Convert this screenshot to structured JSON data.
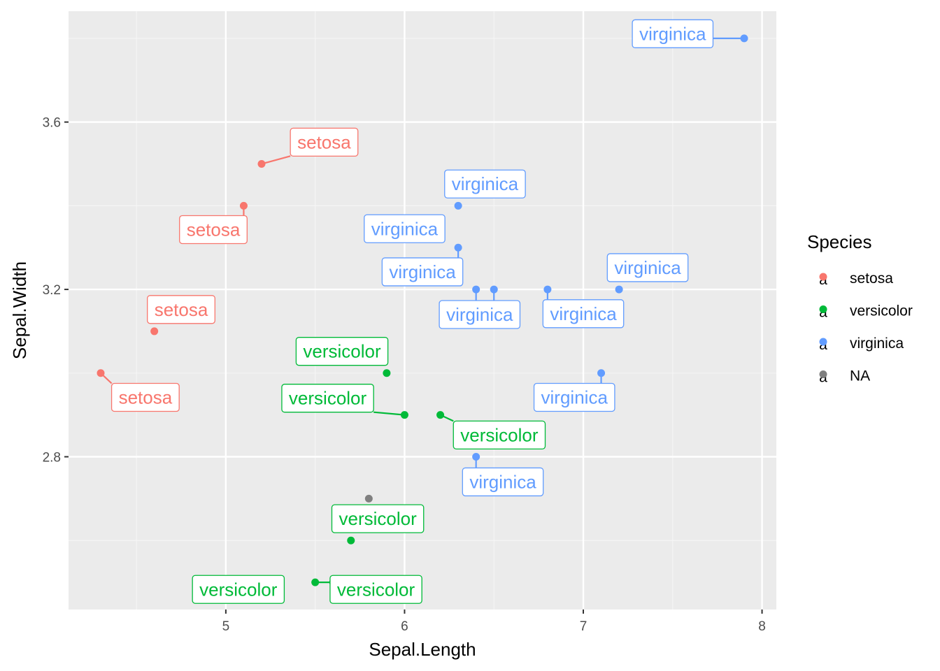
{
  "chart_data": {
    "type": "scatter",
    "xlabel": "Sepal.Length",
    "ylabel": "Sepal.Width",
    "xlim": [
      4.12,
      8.08
    ],
    "ylim": [
      2.435,
      3.865
    ],
    "x_ticks": [
      5,
      6,
      7,
      8
    ],
    "x_minor": [
      4.5,
      5.5,
      6.5,
      7.5
    ],
    "y_ticks": [
      2.8,
      3.2,
      3.6
    ],
    "y_minor": [
      2.6,
      3.0,
      3.4,
      3.8
    ],
    "x_tick_labels": [
      "5",
      "6",
      "7",
      "8"
    ],
    "y_tick_labels": [
      "2.8",
      "3.2",
      "3.6"
    ],
    "grid": true,
    "legend": {
      "title": "Species",
      "placement": "right",
      "entries": [
        {
          "label": "setosa",
          "color": "#F8766D"
        },
        {
          "label": "versicolor",
          "color": "#00BA38"
        },
        {
          "label": "virginica",
          "color": "#619CFF"
        },
        {
          "label": "NA",
          "color": "#7F7F7F"
        }
      ]
    },
    "points": [
      {
        "x": 7.9,
        "y": 3.8,
        "species": "virginica",
        "label": "virginica"
      },
      {
        "x": 5.2,
        "y": 3.5,
        "species": "setosa",
        "label": "setosa"
      },
      {
        "x": 5.1,
        "y": 3.4,
        "species": "setosa",
        "label": "setosa"
      },
      {
        "x": 6.3,
        "y": 3.4,
        "species": "virginica",
        "label": "virginica"
      },
      {
        "x": 6.3,
        "y": 3.3,
        "species": "virginica",
        "label": "virginica"
      },
      {
        "x": 6.4,
        "y": 3.2,
        "species": "virginica",
        "label": "virginica"
      },
      {
        "x": 6.5,
        "y": 3.2,
        "species": "virginica",
        "label": "virginica"
      },
      {
        "x": 6.8,
        "y": 3.2,
        "species": "virginica",
        "label": "virginica"
      },
      {
        "x": 7.2,
        "y": 3.2,
        "species": "virginica",
        "label": "virginica"
      },
      {
        "x": 4.6,
        "y": 3.1,
        "species": "setosa",
        "label": "setosa"
      },
      {
        "x": 4.3,
        "y": 3.0,
        "species": "setosa",
        "label": "setosa"
      },
      {
        "x": 5.9,
        "y": 3.0,
        "species": "versicolor",
        "label": "versicolor"
      },
      {
        "x": 7.1,
        "y": 3.0,
        "species": "virginica",
        "label": "virginica"
      },
      {
        "x": 6.0,
        "y": 2.9,
        "species": "versicolor",
        "label": "versicolor"
      },
      {
        "x": 6.2,
        "y": 2.9,
        "species": "versicolor",
        "label": "versicolor"
      },
      {
        "x": 6.4,
        "y": 2.8,
        "species": "virginica",
        "label": "virginica"
      },
      {
        "x": 5.8,
        "y": 2.7,
        "species": "NA",
        "label": ""
      },
      {
        "x": 5.7,
        "y": 2.6,
        "species": "versicolor",
        "label": "versicolor"
      },
      {
        "x": 5.5,
        "y": 2.5,
        "species": "versicolor",
        "label": "versicolor"
      },
      {
        "x": 5.6,
        "y": 2.5,
        "species": "versicolor",
        "label": "versicolor"
      }
    ],
    "labels": [
      {
        "text": "virginica",
        "species": "virginica",
        "x": 7.5,
        "y": 3.811
      },
      {
        "text": "setosa",
        "species": "setosa",
        "x": 5.55,
        "y": 3.552
      },
      {
        "text": "setosa",
        "species": "setosa",
        "x": 4.93,
        "y": 3.343
      },
      {
        "text": "virginica",
        "species": "virginica",
        "x": 6.45,
        "y": 3.452
      },
      {
        "text": "virginica",
        "species": "virginica",
        "x": 6.0,
        "y": 3.345
      },
      {
        "text": "virginica",
        "species": "virginica",
        "x": 6.1,
        "y": 3.242
      },
      {
        "text": "virginica",
        "species": "virginica",
        "x": 6.42,
        "y": 3.14
      },
      {
        "text": "virginica",
        "species": "virginica",
        "x": 7.0,
        "y": 3.142
      },
      {
        "text": "virginica",
        "species": "virginica",
        "x": 7.36,
        "y": 3.252
      },
      {
        "text": "setosa",
        "species": "setosa",
        "x": 4.75,
        "y": 3.152
      },
      {
        "text": "setosa",
        "species": "setosa",
        "x": 4.55,
        "y": 2.942
      },
      {
        "text": "versicolor",
        "species": "versicolor",
        "x": 5.65,
        "y": 3.052
      },
      {
        "text": "virginica",
        "species": "virginica",
        "x": 6.95,
        "y": 2.942
      },
      {
        "text": "versicolor",
        "species": "versicolor",
        "x": 5.57,
        "y": 2.94
      },
      {
        "text": "versicolor",
        "species": "versicolor",
        "x": 6.53,
        "y": 2.852
      },
      {
        "text": "virginica",
        "species": "virginica",
        "x": 6.55,
        "y": 2.74
      },
      {
        "text": "versicolor",
        "species": "versicolor",
        "x": 5.85,
        "y": 2.652
      },
      {
        "text": "versicolor",
        "species": "versicolor",
        "x": 5.07,
        "y": 2.483
      },
      {
        "text": "versicolor",
        "species": "versicolor",
        "x": 5.84,
        "y": 2.483
      }
    ]
  }
}
